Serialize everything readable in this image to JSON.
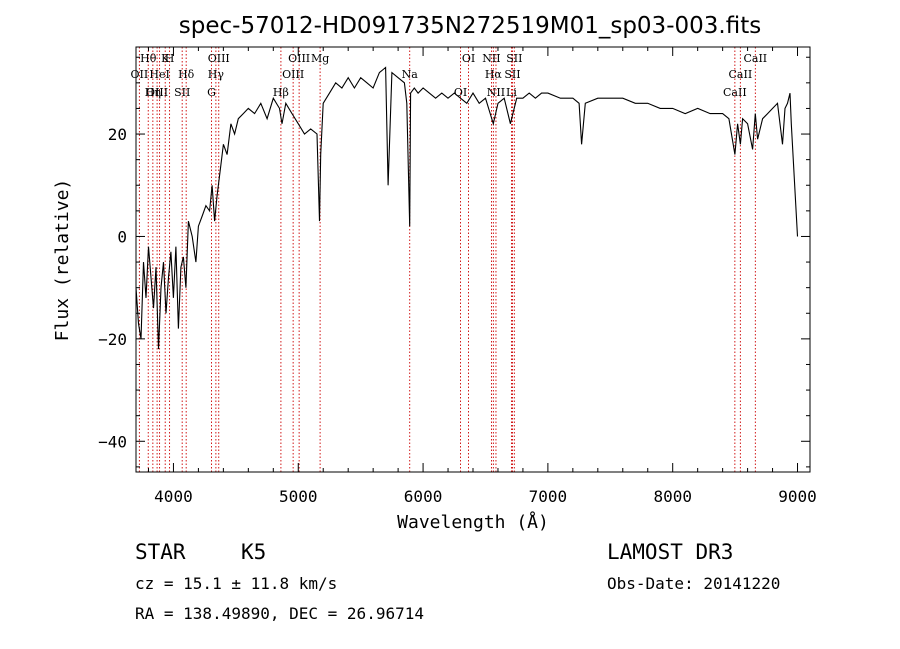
{
  "chart_data": {
    "type": "line",
    "title": "spec-57012-HD091735N272519M01_sp03-003.fits",
    "xlabel": "Wavelength (Å)",
    "ylabel": "Flux (relative)",
    "xlim": [
      3700,
      9100
    ],
    "ylim": [
      -46,
      37
    ],
    "xticks": [
      4000,
      5000,
      6000,
      7000,
      8000,
      9000
    ],
    "yticks": [
      -40,
      -20,
      0,
      20
    ],
    "series": [
      {
        "name": "flux",
        "x": [
          3700,
          3720,
          3740,
          3760,
          3780,
          3800,
          3820,
          3840,
          3860,
          3880,
          3900,
          3920,
          3940,
          3960,
          3980,
          4000,
          4020,
          4040,
          4060,
          4080,
          4100,
          4120,
          4150,
          4180,
          4200,
          4230,
          4260,
          4290,
          4310,
          4330,
          4350,
          4380,
          4400,
          4430,
          4460,
          4490,
          4520,
          4560,
          4600,
          4650,
          4700,
          4750,
          4800,
          4850,
          4870,
          4900,
          4950,
          5000,
          5050,
          5100,
          5150,
          5170,
          5180,
          5200,
          5250,
          5300,
          5350,
          5400,
          5450,
          5500,
          5550,
          5600,
          5650,
          5700,
          5720,
          5750,
          5800,
          5850,
          5870,
          5893,
          5900,
          5930,
          5960,
          6000,
          6050,
          6100,
          6150,
          6200,
          6250,
          6300,
          6350,
          6400,
          6450,
          6500,
          6563,
          6600,
          6650,
          6700,
          6750,
          6800,
          6850,
          6900,
          6950,
          7000,
          7100,
          7200,
          7250,
          7270,
          7300,
          7400,
          7500,
          7600,
          7700,
          7800,
          7900,
          8000,
          8100,
          8200,
          8300,
          8400,
          8450,
          8498,
          8520,
          8542,
          8560,
          8600,
          8640,
          8662,
          8680,
          8720,
          8760,
          8800,
          8840,
          8860,
          8880,
          8900,
          8920,
          8940,
          8950,
          9000
        ],
        "y": [
          -10,
          -17,
          -20,
          -5,
          -12,
          -2,
          -8,
          -14,
          -6,
          -22,
          -10,
          -5,
          -15,
          -8,
          -3,
          -12,
          -2,
          -18,
          -6,
          -4,
          -10,
          3,
          0,
          -5,
          2,
          4,
          6,
          5,
          10,
          3,
          8,
          14,
          18,
          16,
          22,
          20,
          23,
          24,
          25,
          24,
          26,
          23,
          27,
          25,
          22,
          26,
          24,
          22,
          20,
          21,
          20,
          3,
          16,
          26,
          28,
          30,
          29,
          31,
          29,
          31,
          30,
          29,
          32,
          33,
          10,
          32,
          31,
          30,
          26,
          2,
          28,
          29,
          28,
          29,
          28,
          27,
          28,
          27,
          28,
          27,
          26,
          28,
          26,
          27,
          22,
          26,
          27,
          22,
          27,
          27,
          28,
          27,
          28,
          28,
          27,
          27,
          26,
          18,
          26,
          27,
          27,
          27,
          26,
          26,
          25,
          25,
          24,
          25,
          24,
          24,
          23,
          16,
          22,
          18,
          23,
          22,
          17,
          24,
          19,
          23,
          24,
          25,
          26,
          22,
          18,
          25,
          26,
          28,
          22,
          0
        ]
      }
    ],
    "lines": [
      {
        "label": "Hθ",
        "x": 3798
      },
      {
        "label": "OII",
        "x": 3727
      },
      {
        "label": "OIII",
        "x": 3869
      },
      {
        "label": "K",
        "x": 3934
      },
      {
        "label": "HeI",
        "x": 3889
      },
      {
        "label": "Hη",
        "x": 3835
      },
      {
        "label": "H",
        "x": 3969
      },
      {
        "label": "Hδ",
        "x": 4102
      },
      {
        "label": "SII",
        "x": 4070
      },
      {
        "label": "OIII",
        "x": 4363
      },
      {
        "label": "Hγ",
        "x": 4340
      },
      {
        "label": "G",
        "x": 4305
      },
      {
        "label": "OIII",
        "x": 5007
      },
      {
        "label": "OIII",
        "x": 4959
      },
      {
        "label": "Hβ",
        "x": 4861
      },
      {
        "label": "Mg",
        "x": 5175
      },
      {
        "label": "Na",
        "x": 5893
      },
      {
        "label": "OI",
        "x": 6300
      },
      {
        "label": "OI",
        "x": 6364
      },
      {
        "label": "Hα",
        "x": 6563
      },
      {
        "label": "NII",
        "x": 6584
      },
      {
        "label": "NII",
        "x": 6548
      },
      {
        "label": "SII",
        "x": 6716
      },
      {
        "label": "Li",
        "x": 6708
      },
      {
        "label": "SII",
        "x": 6731
      },
      {
        "label": "CaII",
        "x": 8542
      },
      {
        "label": "CaII",
        "x": 8498
      },
      {
        "label": "CaII",
        "x": 8662
      }
    ]
  },
  "info": {
    "class": "STAR",
    "subclass": "K5",
    "survey": "LAMOST DR3",
    "cz": "cz = 15.1 ± 11.8 km/s",
    "obs_date": "Obs-Date: 20141220",
    "radec": "RA = 138.49890, DEC =  26.96714"
  }
}
